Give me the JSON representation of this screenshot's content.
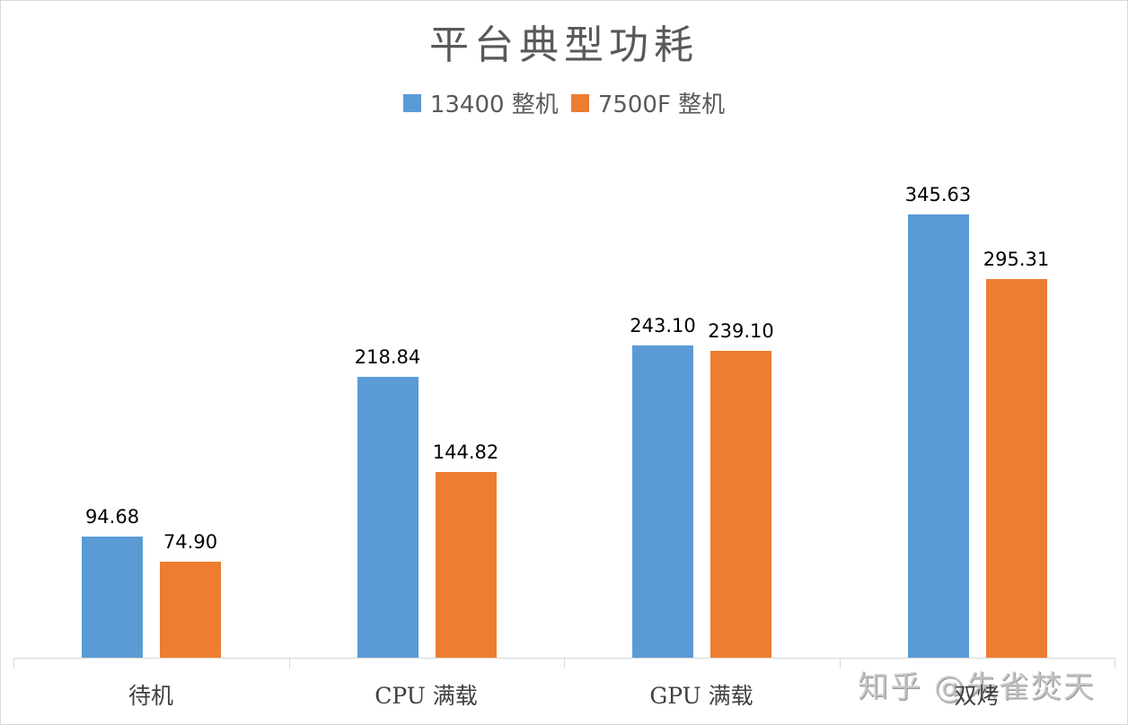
{
  "chart_data": {
    "type": "bar",
    "title": "平台典型功耗",
    "categories": [
      "待机",
      "CPU 满载",
      "GPU 满载",
      "双烤"
    ],
    "series": [
      {
        "name": "13400 整机",
        "color": "#5b9bd5",
        "values": [
          94.68,
          218.84,
          243.1,
          345.63
        ]
      },
      {
        "name": "7500F 整机",
        "color": "#ed7d31",
        "values": [
          74.9,
          144.82,
          239.1,
          295.31
        ]
      }
    ],
    "value_labels": [
      [
        "94.68",
        "218.84",
        "243.10",
        "345.63"
      ],
      [
        "74.90",
        "144.82",
        "239.10",
        "295.31"
      ]
    ],
    "xlabel": "",
    "ylabel": "",
    "ylim": [
      0,
      350
    ],
    "grid": false,
    "legend_position": "top"
  },
  "watermark": "知乎 @朱雀焚天"
}
